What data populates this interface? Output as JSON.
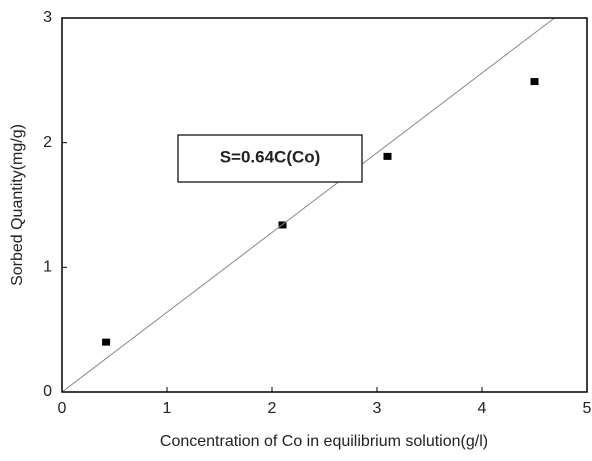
{
  "chart_data": {
    "type": "scatter",
    "xlabel": "Concentration of Co in equilibrium solution(g/l)",
    "ylabel": "Sorbed Quantity(mg/g)",
    "annotation": "S=0.64C(Co)",
    "xlim": [
      0,
      5
    ],
    "xticks": [
      0,
      1,
      2,
      3,
      4,
      5
    ],
    "ylim": [
      0,
      3
    ],
    "yticks": [
      0,
      1,
      2,
      3
    ],
    "series": [
      {
        "color": "#000000",
        "x": [
          0.42,
          2.1,
          3.1,
          4.5
        ],
        "values": [
          0.4,
          1.34,
          1.89,
          2.49
        ]
      },
      {
        "color": "#888888",
        "line": true,
        "x": [
          0,
          4.69
        ],
        "values": [
          0,
          3
        ]
      }
    ]
  }
}
